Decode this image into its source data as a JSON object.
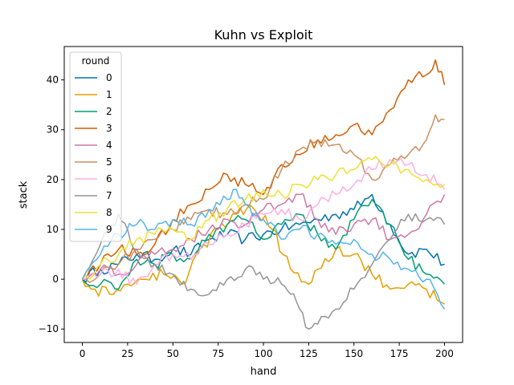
{
  "chart_data": {
    "type": "line",
    "title": "Kuhn vs Exploit",
    "xlabel": "hand",
    "ylabel": "stack",
    "xlim": [
      -10,
      210
    ],
    "ylim": [
      -12.7,
      46.7
    ],
    "xticks": [
      0,
      25,
      50,
      75,
      100,
      125,
      150,
      175,
      200
    ],
    "yticks": [
      -10,
      0,
      10,
      20,
      30,
      40
    ],
    "grid": false,
    "legend": {
      "title": "round",
      "placement": "top-left"
    },
    "series": [
      {
        "name": "0",
        "color": "#0072b2",
        "x": [
          0,
          10,
          20,
          30,
          40,
          50,
          60,
          70,
          80,
          90,
          100,
          110,
          120,
          130,
          140,
          150,
          160,
          170,
          180,
          190,
          200
        ],
        "y": [
          0,
          2,
          3,
          5,
          4,
          6,
          5,
          8,
          9,
          8,
          9,
          10,
          11,
          12,
          13,
          14,
          17,
          11,
          5,
          6,
          3
        ]
      },
      {
        "name": "1",
        "color": "#e69f00",
        "x": [
          0,
          5,
          15,
          25,
          35,
          45,
          55,
          65,
          75,
          85,
          95,
          105,
          115,
          125,
          130,
          140,
          150,
          160,
          170,
          180,
          190,
          200
        ],
        "y": [
          0,
          -2,
          -3,
          -1,
          0,
          1,
          -1,
          6,
          10,
          13,
          14,
          10,
          2,
          -1,
          2,
          6,
          5,
          1,
          -2,
          -1,
          -2,
          -5
        ]
      },
      {
        "name": "2",
        "color": "#009e73",
        "x": [
          0,
          10,
          20,
          30,
          40,
          50,
          60,
          70,
          80,
          90,
          100,
          110,
          120,
          130,
          140,
          150,
          160,
          170,
          180,
          190,
          200
        ],
        "y": [
          0,
          -1,
          -2,
          4,
          3,
          5,
          4,
          9,
          11,
          12,
          8,
          11,
          13,
          9,
          6,
          12,
          16,
          11,
          4,
          1,
          -1
        ]
      },
      {
        "name": "3",
        "color": "#d55e00",
        "x": [
          0,
          10,
          20,
          30,
          40,
          50,
          60,
          70,
          80,
          90,
          100,
          110,
          120,
          130,
          140,
          150,
          160,
          170,
          180,
          190,
          195,
          200
        ],
        "y": [
          0,
          3,
          6,
          5,
          7,
          12,
          15,
          18,
          21,
          19,
          17,
          23,
          25,
          28,
          29,
          31,
          29,
          34,
          40,
          41,
          44,
          39
        ]
      },
      {
        "name": "4",
        "color": "#cc79a7",
        "x": [
          0,
          10,
          20,
          30,
          40,
          50,
          60,
          70,
          80,
          90,
          100,
          110,
          120,
          130,
          140,
          150,
          160,
          170,
          180,
          190,
          200
        ],
        "y": [
          0,
          2,
          1,
          3,
          5,
          6,
          8,
          10,
          12,
          11,
          14,
          15,
          17,
          12,
          9,
          11,
          12,
          8,
          9,
          13,
          17
        ]
      },
      {
        "name": "5",
        "color": "#ca9161",
        "x": [
          0,
          10,
          20,
          30,
          40,
          50,
          60,
          70,
          80,
          90,
          100,
          110,
          120,
          130,
          140,
          150,
          160,
          170,
          180,
          190,
          195,
          200
        ],
        "y": [
          0,
          1,
          3,
          6,
          8,
          10,
          12,
          14,
          13,
          15,
          16,
          22,
          26,
          28,
          27,
          25,
          20,
          23,
          25,
          28,
          33,
          32
        ]
      },
      {
        "name": "6",
        "color": "#fbafe4",
        "x": [
          0,
          10,
          20,
          30,
          40,
          50,
          60,
          70,
          80,
          90,
          100,
          110,
          120,
          130,
          140,
          150,
          160,
          170,
          180,
          190,
          200
        ],
        "y": [
          0,
          1,
          2,
          -1,
          3,
          5,
          4,
          7,
          9,
          11,
          13,
          14,
          12,
          15,
          17,
          19,
          22,
          24,
          23,
          21,
          18
        ]
      },
      {
        "name": "7",
        "color": "#949494",
        "x": [
          0,
          10,
          20,
          25,
          30,
          40,
          50,
          60,
          70,
          80,
          90,
          100,
          110,
          115,
          120,
          125,
          130,
          140,
          150,
          160,
          170,
          180,
          190,
          200
        ],
        "y": [
          0,
          7,
          13,
          10,
          6,
          3,
          1,
          -2,
          -3,
          0,
          2,
          0,
          -1,
          -3,
          -6,
          -10,
          -9,
          -6,
          -2,
          3,
          8,
          13,
          12,
          11
        ]
      },
      {
        "name": "8",
        "color": "#ece133",
        "x": [
          0,
          10,
          20,
          30,
          40,
          50,
          60,
          70,
          80,
          90,
          100,
          110,
          120,
          130,
          140,
          150,
          160,
          170,
          180,
          190,
          200
        ],
        "y": [
          0,
          3,
          5,
          8,
          9,
          10,
          8,
          12,
          14,
          16,
          18,
          17,
          19,
          20,
          21,
          22,
          24,
          23,
          22,
          20,
          19
        ]
      },
      {
        "name": "9",
        "color": "#56b4e9",
        "x": [
          0,
          10,
          20,
          30,
          40,
          50,
          60,
          70,
          80,
          85,
          90,
          100,
          110,
          120,
          130,
          140,
          150,
          160,
          170,
          180,
          190,
          200
        ],
        "y": [
          0,
          5,
          9,
          11,
          10,
          12,
          11,
          14,
          16,
          18,
          15,
          12,
          8,
          10,
          9,
          7,
          8,
          5,
          4,
          2,
          0,
          -6
        ]
      }
    ]
  }
}
